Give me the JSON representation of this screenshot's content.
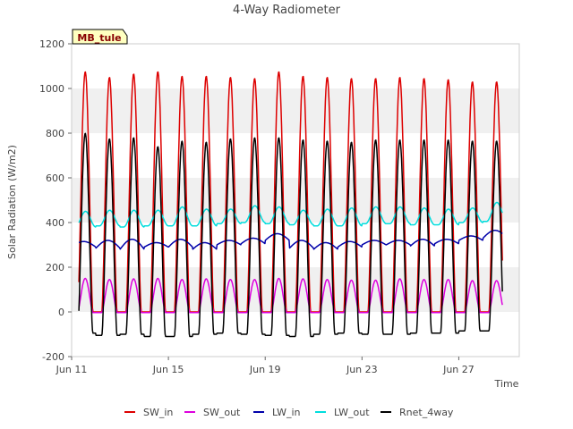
{
  "chart_data": {
    "type": "line",
    "title": "4-Way Radiometer",
    "xlabel": "Time",
    "ylabel": "Solar Radiation (W/m2)",
    "site_label": "MB_tule",
    "xlim_days": [
      11,
      29.5
    ],
    "ylim": [
      -200,
      1200
    ],
    "yticks": [
      -200,
      0,
      200,
      400,
      600,
      800,
      1000,
      1200
    ],
    "xticks": [
      {
        "day": 11,
        "label": "Jun 11"
      },
      {
        "day": 15,
        "label": "Jun 15"
      },
      {
        "day": 19,
        "label": "Jun 19"
      },
      {
        "day": 23,
        "label": "Jun 23"
      },
      {
        "day": 27,
        "label": "Jun 27"
      }
    ],
    "grid": "horizontal bands",
    "legend_position": "bottom",
    "data_start_day": 11.3,
    "data_end_day": 28.8,
    "days": [
      "Jun 11",
      "Jun 12",
      "Jun 13",
      "Jun 14",
      "Jun 15",
      "Jun 16",
      "Jun 17",
      "Jun 18",
      "Jun 19",
      "Jun 20",
      "Jun 21",
      "Jun 22",
      "Jun 23",
      "Jun 24",
      "Jun 25",
      "Jun 26",
      "Jun 27",
      "Jun 28"
    ],
    "daily_peaks": {
      "SW_in": [
        1075,
        1050,
        1065,
        1075,
        1055,
        1055,
        1050,
        1045,
        1075,
        1055,
        1050,
        1045,
        1045,
        1050,
        1045,
        1040,
        1030,
        1030
      ],
      "SW_out": [
        150,
        145,
        148,
        150,
        145,
        148,
        145,
        145,
        150,
        148,
        145,
        142,
        142,
        148,
        145,
        145,
        140,
        140
      ],
      "Rnet_4way_max": [
        800,
        775,
        780,
        740,
        765,
        760,
        775,
        780,
        780,
        770,
        765,
        760,
        770,
        770,
        770,
        770,
        765,
        765
      ],
      "Rnet_4way_min": [
        -95,
        -105,
        -100,
        -110,
        -110,
        -100,
        -95,
        -100,
        -105,
        -110,
        -100,
        -95,
        -100,
        -100,
        -95,
        -95,
        -85,
        -85
      ],
      "LW_in_day": [
        315,
        320,
        325,
        310,
        325,
        310,
        320,
        330,
        350,
        320,
        310,
        315,
        320,
        320,
        325,
        325,
        340,
        365
      ],
      "LW_in_night": [
        290,
        285,
        280,
        290,
        290,
        280,
        300,
        305,
        320,
        285,
        280,
        290,
        300,
        300,
        295,
        305,
        320,
        330
      ],
      "LW_out_day": [
        450,
        455,
        455,
        455,
        470,
        460,
        460,
        475,
        470,
        455,
        460,
        465,
        470,
        470,
        465,
        460,
        465,
        490
      ],
      "LW_out_night": [
        380,
        385,
        380,
        385,
        385,
        385,
        395,
        400,
        395,
        390,
        385,
        385,
        395,
        395,
        390,
        390,
        400,
        405
      ]
    },
    "series": [
      {
        "name": "SW_in",
        "color": "#dd0000"
      },
      {
        "name": "SW_out",
        "color": "#dd00dd"
      },
      {
        "name": "LW_in",
        "color": "#0000aa"
      },
      {
        "name": "LW_out",
        "color": "#00dddd"
      },
      {
        "name": "Rnet_4way",
        "color": "#000000"
      }
    ]
  }
}
